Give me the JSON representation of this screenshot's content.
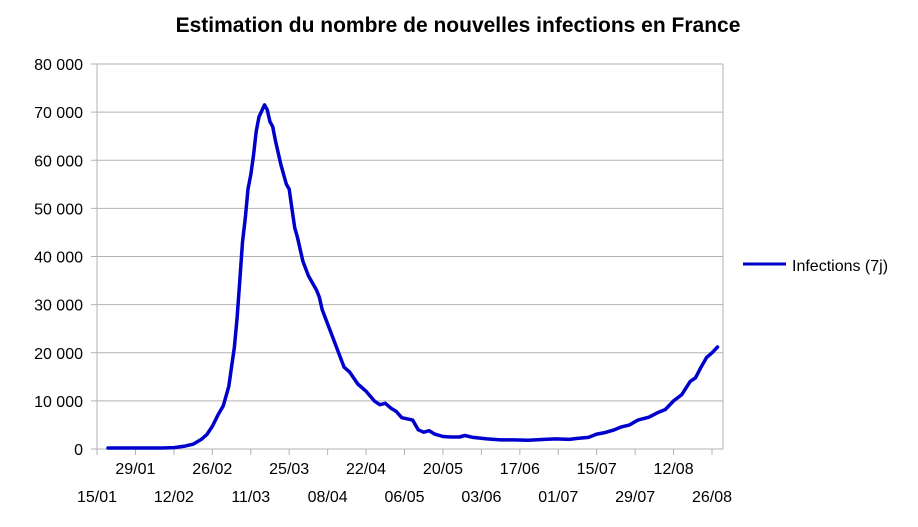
{
  "chart_data": {
    "type": "line",
    "title": "Estimation du nombre de nouvelles infections en France",
    "xlabel": "",
    "ylabel": "",
    "ylim": [
      0,
      80000
    ],
    "yticks": [
      {
        "value": 0,
        "label": "0"
      },
      {
        "value": 10000,
        "label": "10 000"
      },
      {
        "value": 20000,
        "label": "20 000"
      },
      {
        "value": 30000,
        "label": "30 000"
      },
      {
        "value": 40000,
        "label": "40 000"
      },
      {
        "value": 50000,
        "label": "50 000"
      },
      {
        "value": 60000,
        "label": "60 000"
      },
      {
        "value": 70000,
        "label": "70 000"
      },
      {
        "value": 80000,
        "label": "80 000"
      }
    ],
    "xlim": [
      "15/01",
      "30/08"
    ],
    "xticks": [
      {
        "date": "15/01",
        "label": "15/01",
        "row": 2
      },
      {
        "date": "29/01",
        "label": "29/01",
        "row": 1
      },
      {
        "date": "12/02",
        "label": "12/02",
        "row": 2
      },
      {
        "date": "26/02",
        "label": "26/02",
        "row": 1
      },
      {
        "date": "11/03",
        "label": "11/03",
        "row": 2
      },
      {
        "date": "25/03",
        "label": "25/03",
        "row": 1
      },
      {
        "date": "08/04",
        "label": "08/04",
        "row": 2
      },
      {
        "date": "22/04",
        "label": "22/04",
        "row": 1
      },
      {
        "date": "06/05",
        "label": "06/05",
        "row": 2
      },
      {
        "date": "20/05",
        "label": "20/05",
        "row": 1
      },
      {
        "date": "03/06",
        "label": "03/06",
        "row": 2
      },
      {
        "date": "17/06",
        "label": "17/06",
        "row": 1
      },
      {
        "date": "01/07",
        "label": "01/07",
        "row": 2
      },
      {
        "date": "15/07",
        "label": "15/07",
        "row": 1
      },
      {
        "date": "29/07",
        "label": "29/07",
        "row": 2
      },
      {
        "date": "12/08",
        "label": "12/08",
        "row": 1
      },
      {
        "date": "26/08",
        "label": "26/08",
        "row": 2
      }
    ],
    "grid": true,
    "legend": {
      "position": "right"
    },
    "series": [
      {
        "name": "Infections (7j)",
        "color": "#0000cc",
        "points": [
          [
            "19/01",
            200
          ],
          [
            "29/01",
            200
          ],
          [
            "08/02",
            200
          ],
          [
            "12/02",
            300
          ],
          [
            "16/02",
            600
          ],
          [
            "19/02",
            1000
          ],
          [
            "22/02",
            2000
          ],
          [
            "24/02",
            3000
          ],
          [
            "26/02",
            4700
          ],
          [
            "28/02",
            7000
          ],
          [
            "01/03",
            9000
          ],
          [
            "03/03",
            13000
          ],
          [
            "04/03",
            17000
          ],
          [
            "05/03",
            21000
          ],
          [
            "06/03",
            27000
          ],
          [
            "07/03",
            35000
          ],
          [
            "08/03",
            43000
          ],
          [
            "09/03",
            48000
          ],
          [
            "10/03",
            54000
          ],
          [
            "11/03",
            57000
          ],
          [
            "12/03",
            61000
          ],
          [
            "13/03",
            66000
          ],
          [
            "14/03",
            69000
          ],
          [
            "16/03",
            71500
          ],
          [
            "17/03",
            70500
          ],
          [
            "18/03",
            68000
          ],
          [
            "19/03",
            67000
          ],
          [
            "20/03",
            64000
          ],
          [
            "22/03",
            59000
          ],
          [
            "24/03",
            55000
          ],
          [
            "25/03",
            54000
          ],
          [
            "26/03",
            50000
          ],
          [
            "27/03",
            46000
          ],
          [
            "28/03",
            44000
          ],
          [
            "30/03",
            39000
          ],
          [
            "01/04",
            36000
          ],
          [
            "04/04",
            33000
          ],
          [
            "05/04",
            31500
          ],
          [
            "06/04",
            29000
          ],
          [
            "08/04",
            26000
          ],
          [
            "10/04",
            23000
          ],
          [
            "12/04",
            20000
          ],
          [
            "14/04",
            17000
          ],
          [
            "16/04",
            16000
          ],
          [
            "19/04",
            13500
          ],
          [
            "22/04",
            12000
          ],
          [
            "25/04",
            10000
          ],
          [
            "27/04",
            9200
          ],
          [
            "29/04",
            9500
          ],
          [
            "01/05",
            8500
          ],
          [
            "03/05",
            7800
          ],
          [
            "05/05",
            6500
          ],
          [
            "09/05",
            6000
          ],
          [
            "11/05",
            4000
          ],
          [
            "13/05",
            3500
          ],
          [
            "15/05",
            3800
          ],
          [
            "17/05",
            3100
          ],
          [
            "20/05",
            2600
          ],
          [
            "23/05",
            2500
          ],
          [
            "26/05",
            2500
          ],
          [
            "28/05",
            2800
          ],
          [
            "31/05",
            2400
          ],
          [
            "05/06",
            2100
          ],
          [
            "10/06",
            1900
          ],
          [
            "15/06",
            1900
          ],
          [
            "20/06",
            1800
          ],
          [
            "26/06",
            2000
          ],
          [
            "30/06",
            2100
          ],
          [
            "05/07",
            2000
          ],
          [
            "08/07",
            2200
          ],
          [
            "12/07",
            2400
          ],
          [
            "15/07",
            3100
          ],
          [
            "18/07",
            3400
          ],
          [
            "21/07",
            3900
          ],
          [
            "24/07",
            4600
          ],
          [
            "27/07",
            5000
          ],
          [
            "30/07",
            6000
          ],
          [
            "03/08",
            6600
          ],
          [
            "06/08",
            7500
          ],
          [
            "09/08",
            8200
          ],
          [
            "12/08",
            10000
          ],
          [
            "15/08",
            11300
          ],
          [
            "18/08",
            14000
          ],
          [
            "20/08",
            14800
          ],
          [
            "22/08",
            17000
          ],
          [
            "24/08",
            19000
          ],
          [
            "26/08",
            20000
          ],
          [
            "28/08",
            21200
          ]
        ]
      }
    ]
  }
}
